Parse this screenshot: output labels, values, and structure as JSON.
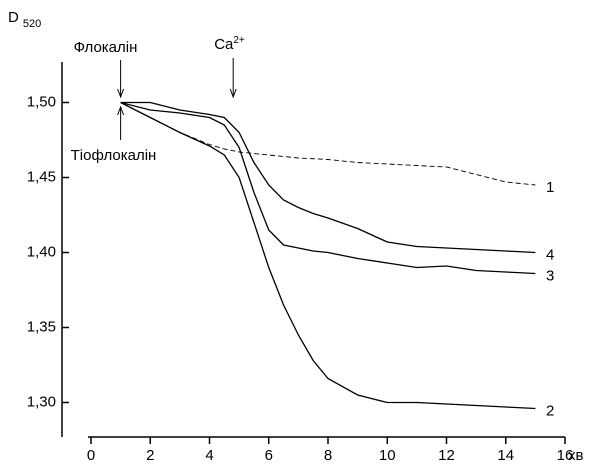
{
  "chart_data": {
    "type": "line",
    "y_label": {
      "text": "D",
      "subscript": "520"
    },
    "x_label": "хв",
    "x": [
      1,
      2,
      3,
      4,
      4.5,
      5,
      5.5,
      6,
      6.5,
      7,
      7.5,
      8,
      9,
      10,
      11,
      12,
      13,
      14,
      15
    ],
    "series": [
      {
        "name": "1",
        "color": "#000000",
        "line_style": "dashed",
        "values": [
          1.5,
          1.49,
          1.48,
          1.472,
          1.469,
          1.467,
          1.466,
          1.465,
          1.464,
          1.463,
          1.4625,
          1.462,
          1.46,
          1.459,
          1.458,
          1.457,
          1.452,
          1.447,
          1.445
        ]
      },
      {
        "name": "2",
        "color": "#000000",
        "line_style": "solid",
        "values": [
          1.5,
          1.49,
          1.48,
          1.471,
          1.465,
          1.45,
          1.42,
          1.39,
          1.365,
          1.345,
          1.328,
          1.316,
          1.305,
          1.3,
          1.3,
          1.299,
          1.298,
          1.297,
          1.296
        ]
      },
      {
        "name": "3",
        "color": "#000000",
        "line_style": "solid",
        "values": [
          1.5,
          1.495,
          1.493,
          1.49,
          1.485,
          1.47,
          1.44,
          1.415,
          1.405,
          1.403,
          1.401,
          1.4,
          1.396,
          1.393,
          1.39,
          1.391,
          1.388,
          1.387,
          1.386
        ]
      },
      {
        "name": "4",
        "color": "#000000",
        "line_style": "solid",
        "values": [
          1.5,
          1.5,
          1.495,
          1.492,
          1.49,
          1.48,
          1.46,
          1.445,
          1.435,
          1.43,
          1.426,
          1.423,
          1.416,
          1.407,
          1.404,
          1.403,
          1.402,
          1.401,
          1.4
        ]
      }
    ],
    "annotations": [
      {
        "text": "Флокалін",
        "x": 1,
        "arrow": "down"
      },
      {
        "text": "Тіофлокалін",
        "x": 1,
        "arrow": "up"
      },
      {
        "text": "Ca",
        "superscript": "2+",
        "x": 4.8,
        "arrow": "down"
      }
    ],
    "xlim": [
      0,
      16
    ],
    "xticks": [
      0,
      2,
      4,
      6,
      8,
      10,
      12,
      14,
      16
    ],
    "ylim": [
      1.277,
      1.527
    ],
    "yticks": [
      {
        "value": 1.3,
        "label": "1,30"
      },
      {
        "value": 1.35,
        "label": "1,35"
      },
      {
        "value": 1.4,
        "label": "1,40"
      },
      {
        "value": 1.45,
        "label": "1,45"
      },
      {
        "value": 1.5,
        "label": "1,50"
      }
    ],
    "grid": false
  }
}
